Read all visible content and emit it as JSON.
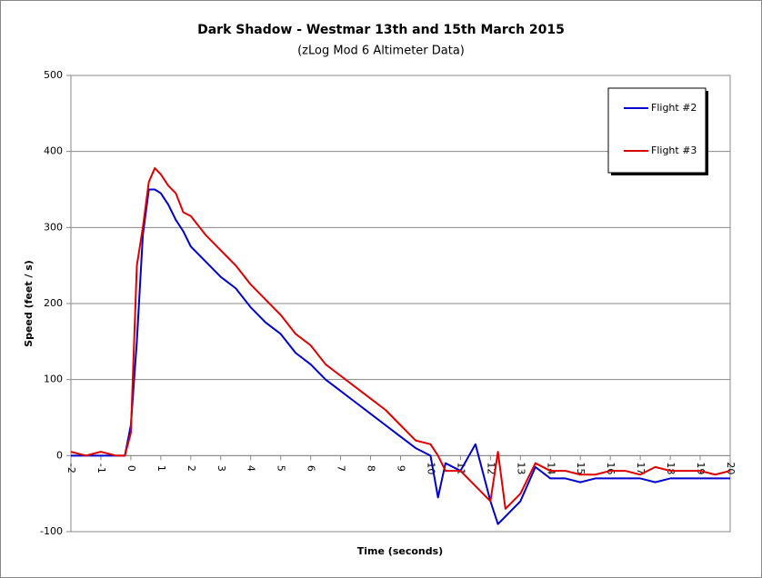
{
  "chart_data": {
    "type": "line",
    "title": "Dark Shadow - Westmar 13th and 15th March 2015",
    "subtitle": "(zLog Mod 6 Altimeter Data)",
    "x_label": "Time (seconds)",
    "y_label": "Speed (feet / s)",
    "x": [
      -2,
      -1.5,
      -1,
      -0.5,
      -0.2,
      0,
      0.2,
      0.4,
      0.6,
      0.8,
      1,
      1.25,
      1.5,
      1.75,
      2,
      2.5,
      3,
      3.5,
      4,
      4.5,
      5,
      5.5,
      6,
      6.5,
      7,
      7.5,
      8,
      8.5,
      9,
      9.5,
      10,
      10.25,
      10.5,
      11,
      11.5,
      12,
      12.25,
      12.5,
      13,
      13.5,
      14,
      14.5,
      15,
      15.5,
      16,
      16.5,
      17,
      17.5,
      18,
      18.5,
      19,
      19.5,
      20
    ],
    "series": [
      {
        "name": "Flight #2",
        "color": "#0000cc",
        "values": [
          0,
          0,
          0,
          0,
          0,
          40,
          150,
          290,
          350,
          350,
          345,
          330,
          310,
          295,
          275,
          255,
          235,
          220,
          195,
          175,
          160,
          135,
          120,
          100,
          85,
          70,
          55,
          40,
          25,
          10,
          0,
          -55,
          -10,
          -20,
          15,
          -60,
          -90,
          -80,
          -60,
          -15,
          -30,
          -30,
          -35,
          -30,
          -30,
          -30,
          -30,
          -35,
          -30,
          -30,
          -30,
          -30,
          -30
        ]
      },
      {
        "name": "Flight #3",
        "color": "#dd0000",
        "values": [
          5,
          0,
          5,
          0,
          0,
          30,
          250,
          300,
          360,
          378,
          370,
          355,
          345,
          320,
          315,
          290,
          270,
          250,
          225,
          205,
          185,
          160,
          145,
          120,
          105,
          90,
          75,
          60,
          40,
          20,
          15,
          0,
          -20,
          -20,
          -40,
          -60,
          5,
          -70,
          -50,
          -10,
          -20,
          -20,
          -25,
          -25,
          -20,
          -20,
          -25,
          -15,
          -20,
          -20,
          -20,
          -25,
          -20
        ]
      }
    ],
    "xlim": [
      -2,
      20
    ],
    "xticks": [
      -2,
      -1,
      0,
      1,
      2,
      3,
      4,
      5,
      6,
      7,
      8,
      9,
      10,
      11,
      12,
      13,
      14,
      15,
      16,
      17,
      18,
      19,
      20
    ],
    "ylim": [
      -100,
      500
    ],
    "yticks": [
      -100,
      0,
      100,
      200,
      300,
      400,
      500
    ],
    "grid": true,
    "legend": "top-right"
  }
}
